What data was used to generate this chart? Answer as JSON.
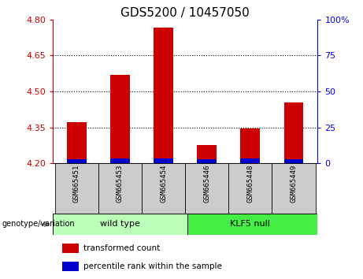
{
  "title": "GDS5200 / 10457050",
  "samples": [
    "GSM665451",
    "GSM665453",
    "GSM665454",
    "GSM665446",
    "GSM665448",
    "GSM665449"
  ],
  "group_labels": [
    "wild type",
    "KLF5 null"
  ],
  "baseline": 4.2,
  "red_tops": [
    4.37,
    4.57,
    4.765,
    4.275,
    4.345,
    4.455
  ],
  "blue_tops": [
    4.218,
    4.219,
    4.219,
    4.217,
    4.219,
    4.218
  ],
  "ylim_left": [
    4.2,
    4.8
  ],
  "ylim_right": [
    0,
    100
  ],
  "yticks_left": [
    4.2,
    4.35,
    4.5,
    4.65,
    4.8
  ],
  "yticks_right": [
    0,
    25,
    50,
    75,
    100
  ],
  "red_color": "#CC0000",
  "blue_color": "#0000CC",
  "bar_width": 0.45,
  "legend_red": "transformed count",
  "legend_blue": "percentile rank within the sample",
  "genotype_label": "genotype/variation",
  "bg_wildtype": "#BBFFBB",
  "bg_klf5": "#44EE44",
  "title_fontsize": 11,
  "tick_fontsize": 8,
  "sample_fontsize": 6.5,
  "group_fontsize": 8,
  "legend_fontsize": 7.5
}
